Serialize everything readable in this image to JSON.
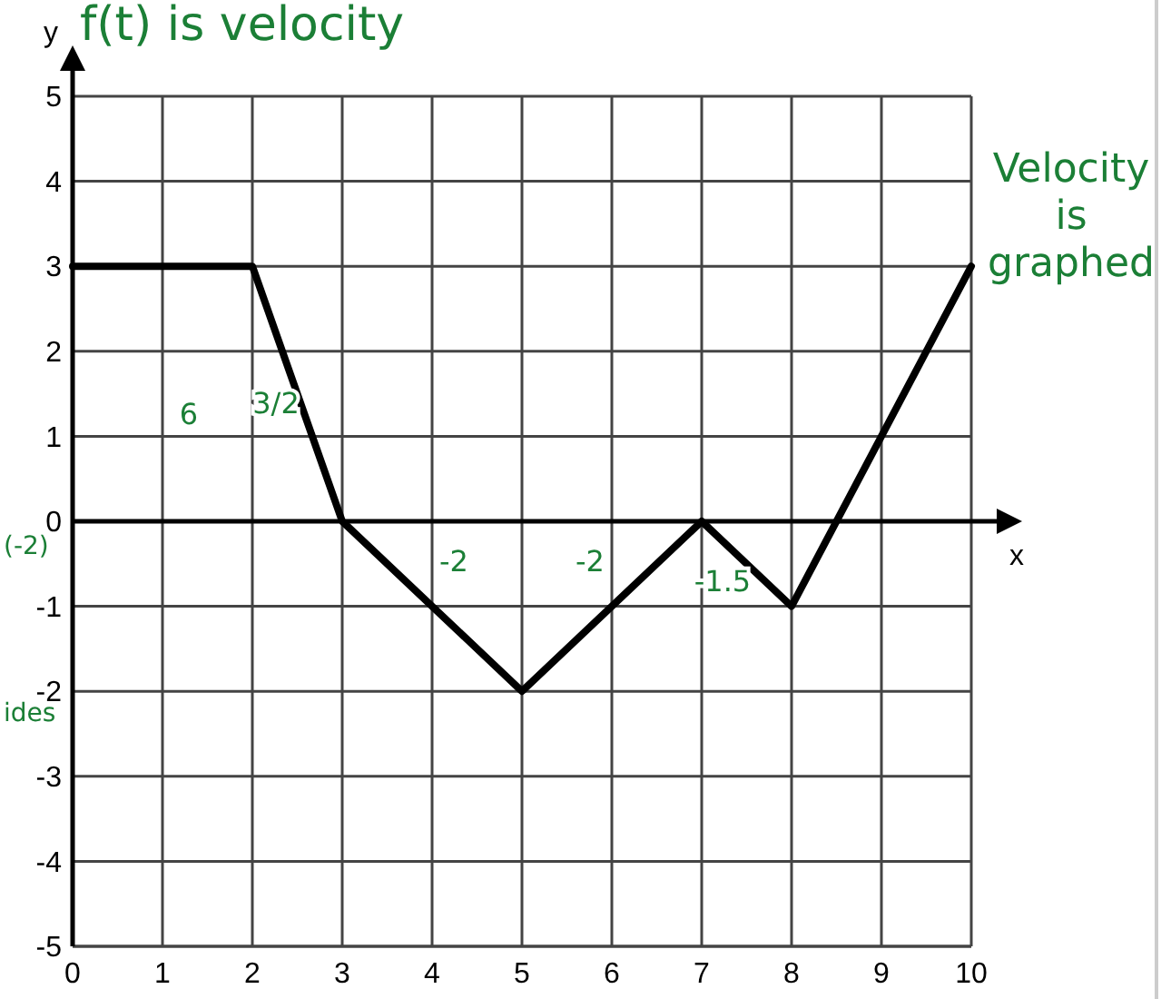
{
  "chart_data": {
    "type": "line",
    "title": "f(t) is velocity",
    "xlabel": "x",
    "ylabel": "y",
    "x": [
      0,
      2,
      3,
      5,
      7,
      8,
      10
    ],
    "series": [
      {
        "color": "#000000",
        "values": [
          3,
          3,
          0,
          -2,
          0,
          -1,
          3
        ]
      }
    ],
    "xlim": [
      0,
      10
    ],
    "ylim": [
      -5,
      5
    ],
    "xticks": [
      0,
      1,
      2,
      3,
      4,
      5,
      6,
      7,
      8,
      9,
      10
    ],
    "yticks": [
      -5,
      -4,
      -3,
      -2,
      -1,
      0,
      1,
      2,
      3,
      4,
      5
    ],
    "grid": true,
    "marker": "none",
    "line_style": "solid",
    "annotations": [
      "Velocity is graphed",
      "(-2)",
      "ides",
      "6",
      "3/2",
      "-2",
      "-2",
      "-1.5"
    ]
  }
}
